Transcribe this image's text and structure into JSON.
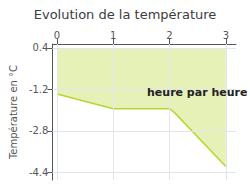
{
  "chart_data": {
    "type": "line",
    "title": "Evolution de la température",
    "ylabel": "Température en °C",
    "x": [
      0,
      1.0,
      2.0,
      2.08,
      3.0
    ],
    "values": [
      -1.38,
      -1.95,
      -1.95,
      -2.08,
      -4.18
    ],
    "fill_top": 0.4,
    "xlim": [
      -0.08,
      3.18
    ],
    "ylim": [
      -4.7,
      0.55
    ],
    "xticks": [
      0,
      1,
      2,
      3
    ],
    "yticks": [
      0.4,
      -1.2,
      -2.8,
      -4.4
    ],
    "grid": true,
    "annotations": [
      {
        "text": "heure par heure",
        "x": 1.6,
        "y": -1.1
      }
    ]
  }
}
